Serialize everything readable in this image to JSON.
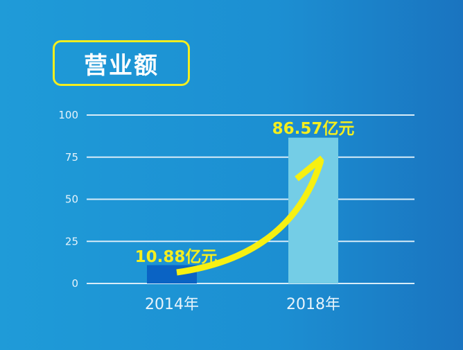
{
  "title": "营业额",
  "chart_data": {
    "type": "bar",
    "title": "营业额",
    "categories": [
      "2014年",
      "2018年"
    ],
    "values": [
      10.88,
      86.57
    ],
    "data_labels": [
      "10.88亿元",
      "86.57亿元"
    ],
    "ylim": [
      0,
      100
    ],
    "yticks": [
      0,
      25,
      50,
      75,
      100
    ],
    "grid": true,
    "annotation": "yellow curved arrow from 2014 bar to 2018 bar",
    "colors": {
      "bar_2014": "#0a63c4",
      "bar_2018": "#74cde6",
      "label": "#f4ee1e",
      "arrow": "#f7f011",
      "grid": "#d8ecf8",
      "axis_text": "#e8f4fb"
    }
  }
}
